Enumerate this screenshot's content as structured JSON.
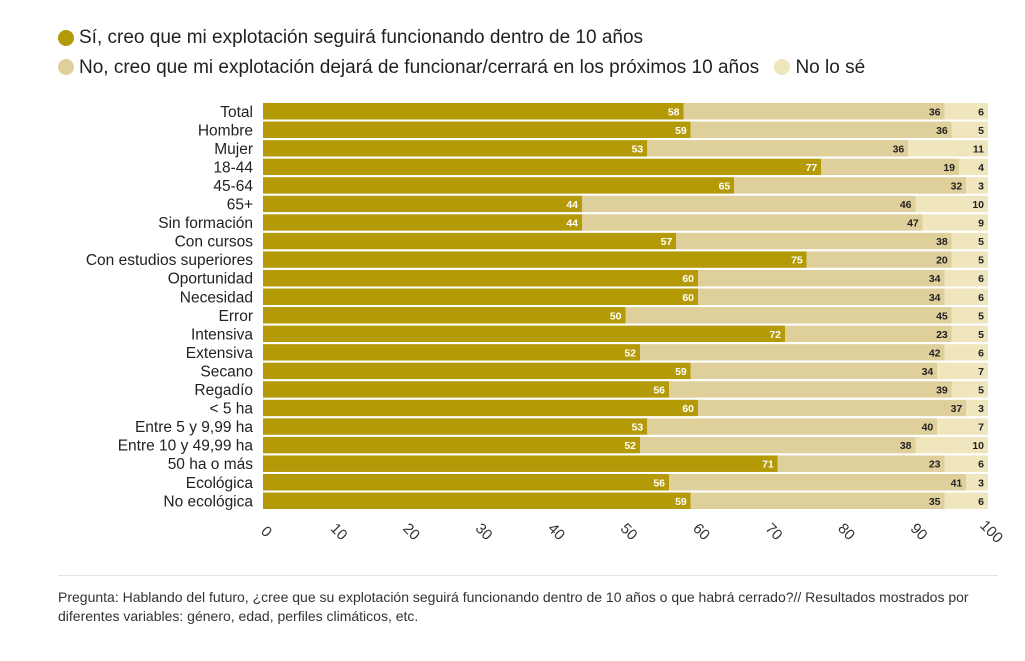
{
  "legend": [
    {
      "label": "Sí, creo que mi explotación seguirá funcionando dentro de 10 años",
      "color": "#b59a08"
    },
    {
      "label": "No, creo que mi explotación dejará de funcionar/cerrará en los próximos 10 años",
      "color": "#dfcf9b"
    },
    {
      "label": "No lo sé",
      "color": "#f0e6be"
    }
  ],
  "footer": {
    "note": "Pregunta: Hablando del futuro, ¿cree que su explotación seguirá funcionando dentro de 10 años o que habrá cerrado?// Resultados mostrados por diferentes variables: género, edad, perfiles climáticos, etc."
  },
  "chart_data": {
    "type": "bar",
    "orientation": "horizontal",
    "stacked": true,
    "categories": [
      "Total",
      "Hombre",
      "Mujer",
      "18-44",
      "45-64",
      "65+",
      "Sin formación",
      "Con cursos",
      "Con estudios superiores",
      "Oportunidad",
      "Necesidad",
      "Error",
      "Intensiva",
      "Extensiva",
      "Secano",
      "Regadío",
      "< 5 ha",
      "Entre 5 y 9,99 ha",
      "Entre 10 y 49,99 ha",
      "50 ha o más",
      "Ecológica",
      "No ecológica"
    ],
    "series": [
      {
        "name": "Sí, creo que mi explotación seguirá funcionando dentro de 10 años",
        "color": "#b59a08",
        "label_color": "#ffffff",
        "values": [
          58,
          59,
          53,
          77,
          65,
          44,
          44,
          57,
          75,
          60,
          60,
          50,
          72,
          52,
          59,
          56,
          60,
          53,
          52,
          71,
          56,
          59
        ]
      },
      {
        "name": "No, creo que mi explotación dejará de funcionar/cerrará en los próximos 10 años",
        "color": "#dfcf9b",
        "label_color": "#222222",
        "values": [
          36,
          36,
          36,
          19,
          32,
          46,
          47,
          38,
          20,
          34,
          34,
          45,
          23,
          42,
          34,
          39,
          37,
          40,
          38,
          23,
          41,
          35
        ]
      },
      {
        "name": "No lo sé",
        "color": "#f0e6be",
        "label_color": "#222222",
        "values": [
          6,
          5,
          11,
          4,
          3,
          10,
          9,
          5,
          5,
          6,
          6,
          5,
          5,
          6,
          7,
          5,
          3,
          7,
          10,
          6,
          3,
          6
        ]
      }
    ],
    "x_ticks": [
      0,
      10,
      20,
      30,
      40,
      50,
      60,
      70,
      80,
      90,
      100
    ],
    "xlim": [
      0,
      100
    ],
    "title": "",
    "xlabel": "",
    "ylabel": ""
  }
}
